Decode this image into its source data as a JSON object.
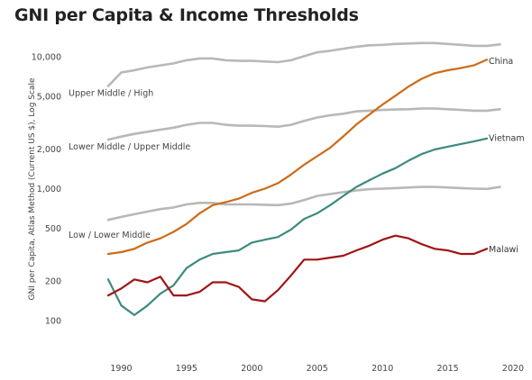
{
  "chart_data": {
    "type": "line",
    "title": "GNI per Capita & Income Thresholds",
    "xlabel": "",
    "ylabel": "GNI per Capita, Atlas Method (Current US $), Log Scale",
    "y_scale": "log",
    "xlim": [
      1987,
      2021
    ],
    "ylim": [
      80,
      16000
    ],
    "x_ticks": [
      1990,
      1995,
      2000,
      2005,
      2010,
      2015,
      2020
    ],
    "y_ticks": [
      {
        "value": 100,
        "label": "100"
      },
      {
        "value": 200,
        "label": "200"
      },
      {
        "value": 500,
        "label": "500"
      },
      {
        "value": 1000,
        "label": "1,000"
      },
      {
        "value": 2000,
        "label": "2,000"
      },
      {
        "value": 5000,
        "label": "5,000"
      },
      {
        "value": 10000,
        "label": "10,000"
      }
    ],
    "grid": false,
    "x": [
      1989,
      1990,
      1991,
      1992,
      1993,
      1994,
      1995,
      1996,
      1997,
      1998,
      1999,
      2000,
      2001,
      2002,
      2003,
      2004,
      2005,
      2006,
      2007,
      2008,
      2009,
      2010,
      2011,
      2012,
      2013,
      2014,
      2015,
      2016,
      2017,
      2018,
      2019
    ],
    "thresholds": [
      {
        "name": "Upper Middle / High",
        "color": "#b8b8b8",
        "values": [
          6000,
          7600,
          7900,
          8300,
          8600,
          8900,
          9400,
          9700,
          9700,
          9400,
          9300,
          9300,
          9200,
          9100,
          9400,
          10100,
          10800,
          11100,
          11500,
          11900,
          12200,
          12300,
          12500,
          12600,
          12700,
          12700,
          12500,
          12300,
          12100,
          12100,
          12400
        ]
      },
      {
        "name": "Lower Middle / Upper Middle",
        "color": "#b8b8b8",
        "values": [
          2350,
          2480,
          2600,
          2700,
          2800,
          2900,
          3050,
          3150,
          3150,
          3050,
          3000,
          3000,
          2980,
          2950,
          3050,
          3260,
          3460,
          3600,
          3700,
          3850,
          3900,
          3950,
          3980,
          4000,
          4050,
          4050,
          4000,
          3950,
          3900,
          3900,
          4000
        ]
      },
      {
        "name": "Low / Lower Middle",
        "color": "#b8b8b8",
        "values": [
          580,
          610,
          640,
          670,
          700,
          720,
          760,
          780,
          780,
          760,
          760,
          760,
          755,
          750,
          770,
          820,
          880,
          910,
          940,
          970,
          990,
          1000,
          1010,
          1020,
          1030,
          1030,
          1020,
          1010,
          1000,
          995,
          1030
        ]
      }
    ],
    "series": [
      {
        "name": "China",
        "color": "#cc6b16",
        "values": [
          320,
          330,
          350,
          390,
          420,
          470,
          540,
          650,
          750,
          790,
          840,
          930,
          1000,
          1100,
          1280,
          1520,
          1760,
          2040,
          2490,
          3060,
          3650,
          4340,
          5060,
          5940,
          6800,
          7500,
          7900,
          8200,
          8600,
          9500,
          null
        ]
      },
      {
        "name": "Vietnam",
        "color": "#3d8a7e",
        "values": [
          205,
          130,
          110,
          130,
          160,
          185,
          250,
          290,
          320,
          330,
          340,
          390,
          410,
          430,
          490,
          590,
          650,
          750,
          880,
          1030,
          1160,
          1300,
          1430,
          1630,
          1830,
          1980,
          2080,
          2180,
          2280,
          2400,
          null
        ]
      },
      {
        "name": "Malawi",
        "color": "#a01414",
        "values": [
          155,
          175,
          205,
          195,
          215,
          155,
          155,
          165,
          195,
          195,
          180,
          145,
          140,
          170,
          220,
          290,
          290,
          300,
          310,
          340,
          370,
          410,
          440,
          420,
          380,
          350,
          340,
          320,
          320,
          350,
          null
        ]
      }
    ]
  }
}
